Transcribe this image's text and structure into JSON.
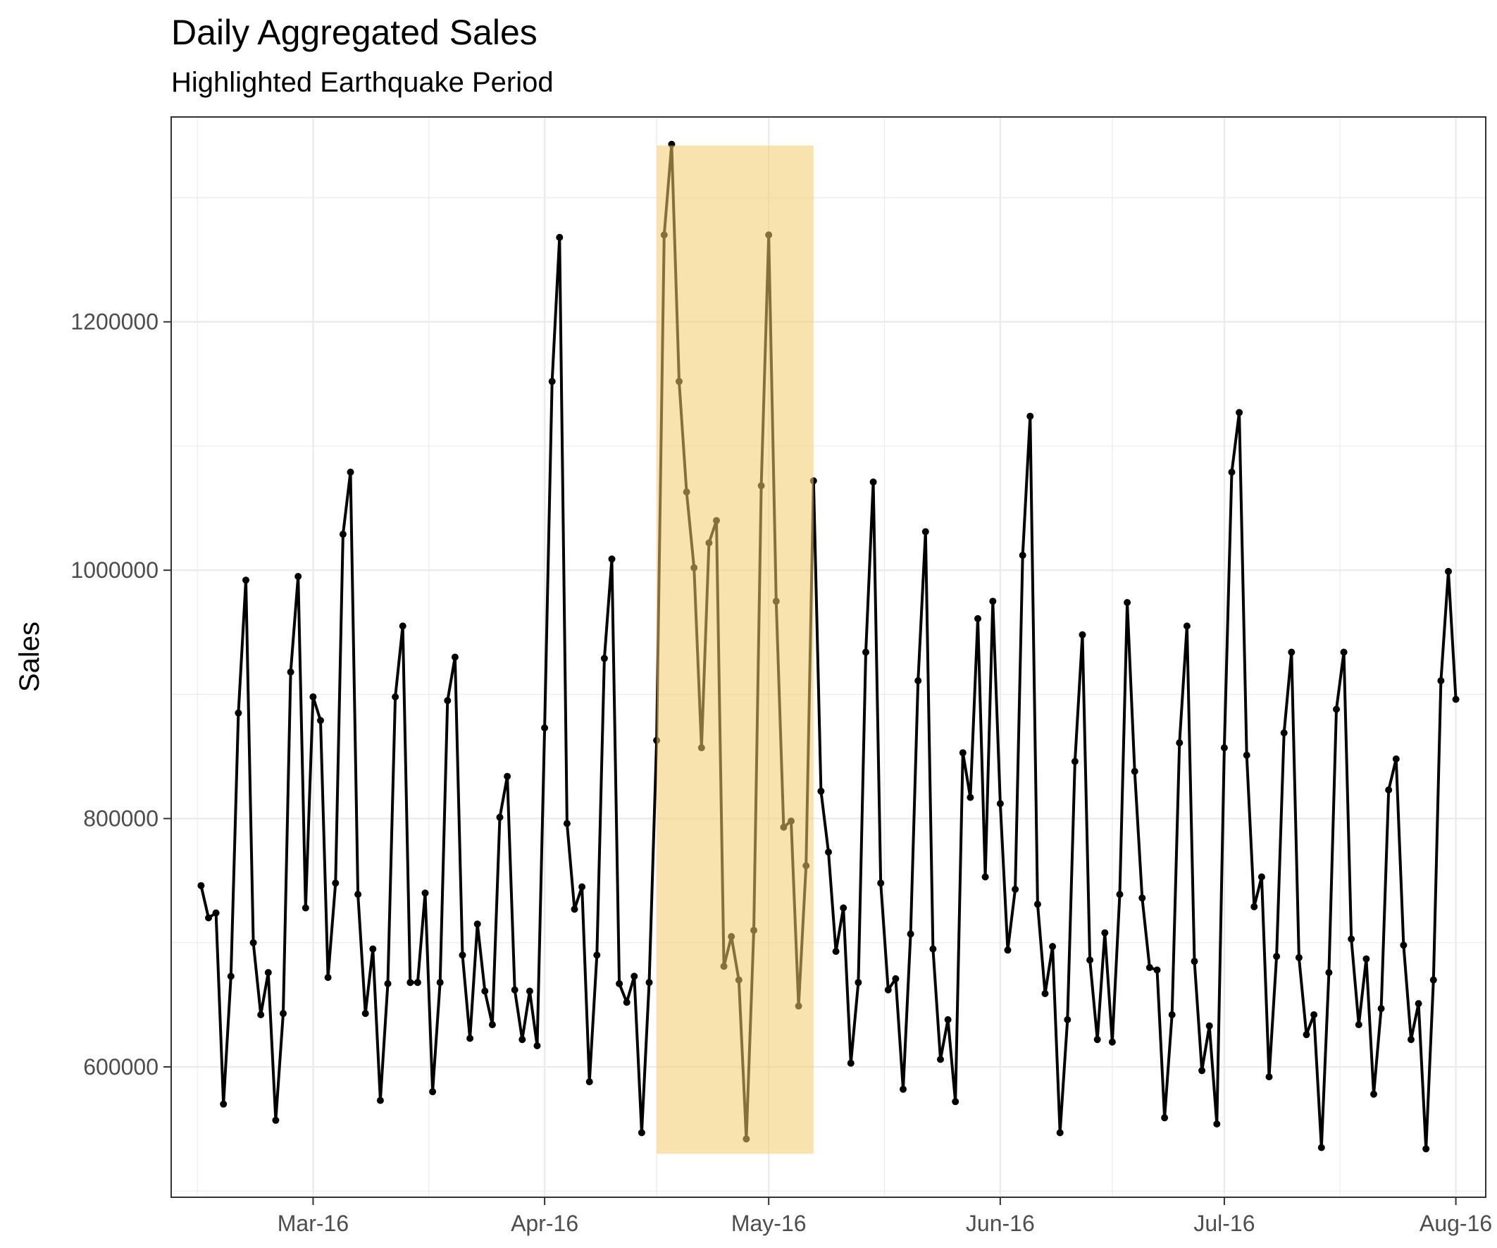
{
  "chart_data": {
    "type": "line",
    "title": "Daily Aggregated Sales",
    "subtitle": "Highlighted Earthquake Period",
    "xlabel": "",
    "ylabel": "Sales",
    "x_start": "2016-02-15",
    "x_end": "2016-08-01",
    "xlim": [
      "2016-02-11",
      "2016-08-05"
    ],
    "ylim": [
      495000,
      1365000
    ],
    "y_ticks": [
      600000,
      800000,
      1000000,
      1200000
    ],
    "y_tick_labels": [
      "600000",
      "800000",
      "1000000",
      "1200000"
    ],
    "x_ticks": [
      "2016-03-01",
      "2016-04-01",
      "2016-05-01",
      "2016-06-01",
      "2016-07-01",
      "2016-08-01"
    ],
    "x_tick_labels": [
      "Mar-16",
      "Apr-16",
      "May-16",
      "Jun-16",
      "Jul-16",
      "Aug-16"
    ],
    "grid": true,
    "highlight": {
      "start": "2016-04-16",
      "end": "2016-05-07",
      "ymin": 530000,
      "ymax": 1342000,
      "color": "#f2cc6b"
    },
    "line_color": "#000000",
    "values": [
      746000,
      720000,
      724000,
      570000,
      673000,
      885000,
      992000,
      700000,
      642000,
      676000,
      557000,
      643000,
      918000,
      995000,
      728000,
      898000,
      879000,
      672000,
      748000,
      1029000,
      1079000,
      739000,
      643000,
      695000,
      573000,
      667000,
      898000,
      955000,
      668000,
      668000,
      740000,
      580000,
      668000,
      895000,
      930000,
      690000,
      623000,
      715000,
      661000,
      634000,
      801000,
      834000,
      662000,
      622000,
      661000,
      617000,
      873000,
      1152000,
      1268000,
      796000,
      727000,
      745000,
      588000,
      690000,
      929000,
      1009000,
      667000,
      652000,
      673000,
      547000,
      668000,
      863000,
      1270000,
      1343000,
      1152000,
      1063000,
      1002000,
      857000,
      1022000,
      1040000,
      681000,
      705000,
      670000,
      542000,
      710000,
      1068000,
      1270000,
      975000,
      793000,
      798000,
      649000,
      762000,
      1072000,
      822000,
      773000,
      693000,
      728000,
      603000,
      668000,
      934000,
      1071000,
      748000,
      662000,
      671000,
      582000,
      707000,
      911000,
      1031000,
      695000,
      606000,
      638000,
      572000,
      853000,
      817000,
      961000,
      753000,
      975000,
      812000,
      694000,
      743000,
      1012000,
      1124000,
      731000,
      659000,
      697000,
      547000,
      638000,
      846000,
      948000,
      686000,
      622000,
      708000,
      620000,
      739000,
      974000,
      838000,
      736000,
      680000,
      678000,
      559000,
      642000,
      861000,
      955000,
      685000,
      597000,
      633000,
      554000,
      857000,
      1079000,
      1127000,
      851000,
      729000,
      753000,
      592000,
      689000,
      869000,
      934000,
      688000,
      626000,
      642000,
      535000,
      676000,
      888000,
      934000,
      703000,
      634000,
      687000,
      578000,
      647000,
      823000,
      848000,
      698000,
      622000,
      651000,
      534000,
      670000,
      911000,
      999000,
      896000
    ]
  }
}
